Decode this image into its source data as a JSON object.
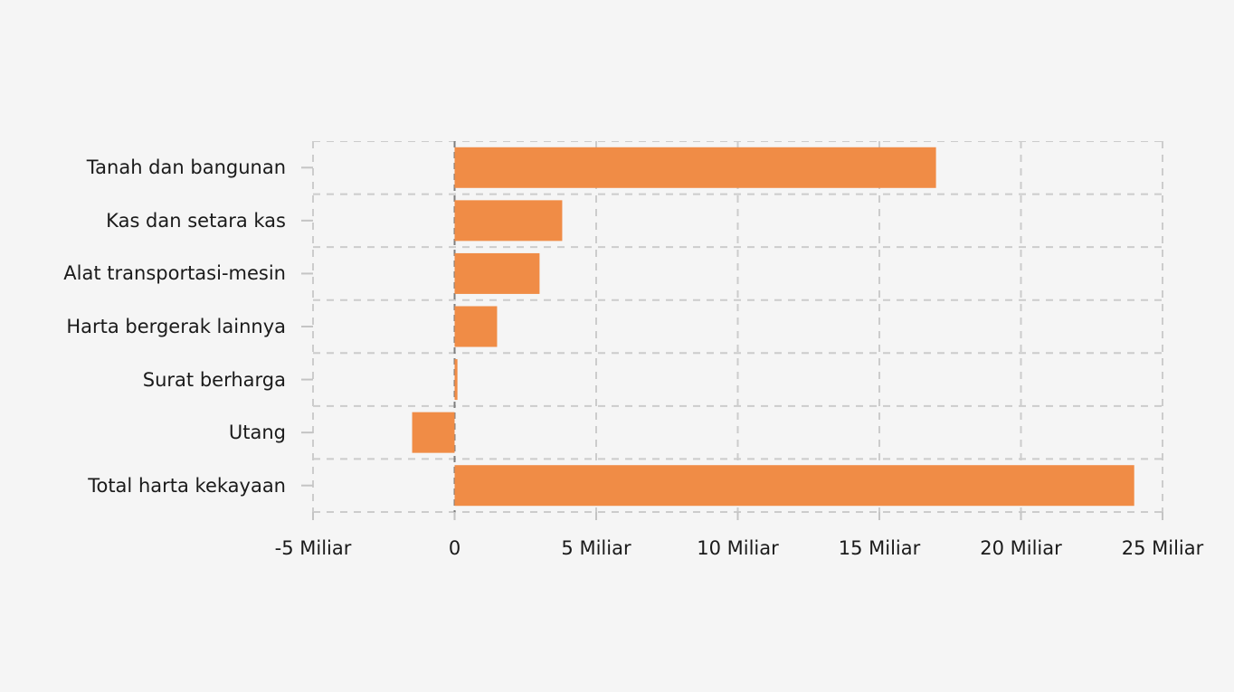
{
  "chart_data": {
    "type": "bar",
    "orientation": "horizontal",
    "title": "",
    "xlabel": "",
    "ylabel": "",
    "categories": [
      "Tanah dan bangunan",
      "Kas dan setara kas",
      "Alat transportasi-mesin",
      "Harta bergerak lainnya",
      "Surat berharga",
      "Utang",
      "Total harta kekayaan"
    ],
    "values": [
      17,
      3.8,
      3,
      1.5,
      0.1,
      -1.5,
      24
    ],
    "value_unit": "Miliar",
    "xlim": [
      -5,
      25
    ],
    "x_ticks": [
      {
        "value": -5,
        "label": "-5 Miliar"
      },
      {
        "value": 0,
        "label": "0"
      },
      {
        "value": 5,
        "label": "5 Miliar"
      },
      {
        "value": 10,
        "label": "10 Miliar"
      },
      {
        "value": 15,
        "label": "15 Miliar"
      },
      {
        "value": 20,
        "label": "20 Miliar"
      },
      {
        "value": 25,
        "label": "25 Miliar"
      }
    ],
    "grid": true,
    "legend": "none",
    "colors": {
      "bar": "#F08C46",
      "background": "#f5f5f5",
      "gridline": "#cccccc",
      "zeroline": "#7e7e7e",
      "tick": "#c4c4c4",
      "text": "#1a1a1a"
    }
  }
}
